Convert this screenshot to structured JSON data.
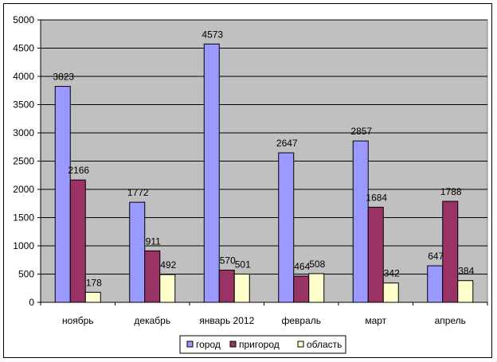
{
  "chart_data": {
    "type": "bar",
    "title": "",
    "xlabel": "",
    "ylabel": "",
    "categories": [
      "ноябрь",
      "декабрь",
      "январь 2012",
      "февраль",
      "март",
      "апрель"
    ],
    "series": [
      {
        "name": "город",
        "values": [
          3823,
          1772,
          4573,
          2647,
          2857,
          647
        ],
        "color": "#9999FF"
      },
      {
        "name": "пригород",
        "values": [
          2166,
          911,
          570,
          464,
          1684,
          1788
        ],
        "color": "#993366"
      },
      {
        "name": "область",
        "values": [
          178,
          492,
          501,
          508,
          342,
          384
        ],
        "color": "#FFFFCC"
      }
    ],
    "ylim": [
      0,
      5000
    ],
    "yticks": [
      0,
      500,
      1000,
      1500,
      2000,
      2500,
      3000,
      3500,
      4000,
      4500,
      5000
    ],
    "grid": true,
    "plot_background": "#C0C0C0",
    "legend_position": "bottom",
    "data_labels": true
  }
}
